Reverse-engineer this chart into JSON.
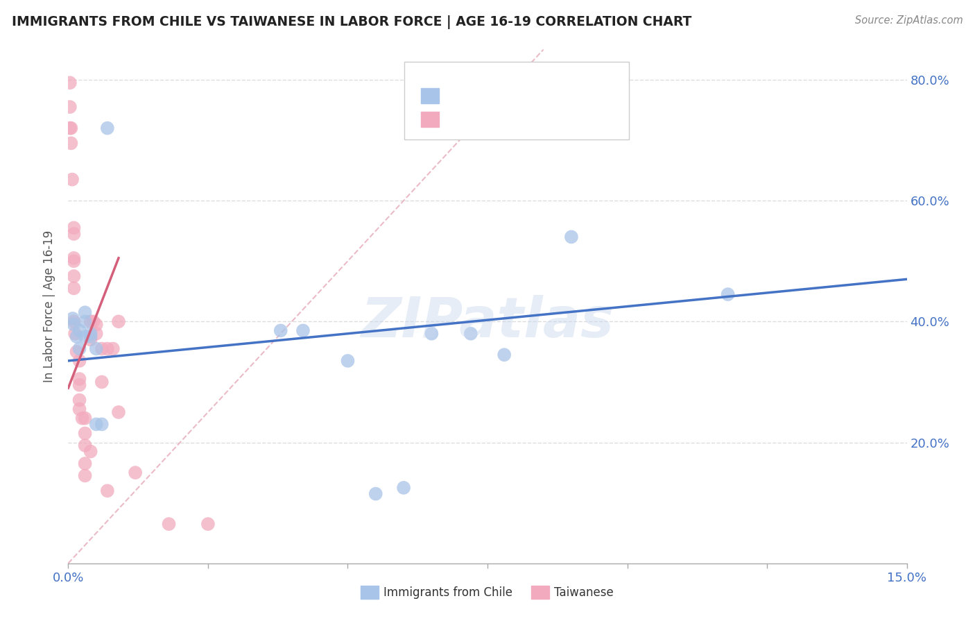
{
  "title": "IMMIGRANTS FROM CHILE VS TAIWANESE IN LABOR FORCE | AGE 16-19 CORRELATION CHART",
  "source": "Source: ZipAtlas.com",
  "ylabel": "In Labor Force | Age 16-19",
  "xlim": [
    0.0,
    0.15
  ],
  "ylim": [
    0.0,
    0.85
  ],
  "xticks": [
    0.0,
    0.025,
    0.05,
    0.075,
    0.1,
    0.125,
    0.15
  ],
  "yticks": [
    0.0,
    0.2,
    0.4,
    0.6,
    0.8
  ],
  "blue_color": "#a8c4e8",
  "pink_color": "#f2abbe",
  "line_blue": "#4472c4",
  "line_pink": "#d45f7a",
  "line_diag_color": "#e8b4c0",
  "watermark": "ZIPatlas",
  "blue_x": [
    0.0008,
    0.001,
    0.0015,
    0.002,
    0.002,
    0.003,
    0.003,
    0.003,
    0.004,
    0.004,
    0.005,
    0.005,
    0.006,
    0.007,
    0.038,
    0.042,
    0.05,
    0.055,
    0.06,
    0.065,
    0.072,
    0.078,
    0.09,
    0.118
  ],
  "blue_y": [
    0.405,
    0.395,
    0.375,
    0.385,
    0.355,
    0.415,
    0.4,
    0.375,
    0.375,
    0.38,
    0.355,
    0.23,
    0.23,
    0.72,
    0.385,
    0.385,
    0.335,
    0.115,
    0.125,
    0.38,
    0.38,
    0.345,
    0.54,
    0.445
  ],
  "pink_x": [
    0.0003,
    0.0003,
    0.0003,
    0.0005,
    0.0005,
    0.0007,
    0.001,
    0.001,
    0.001,
    0.001,
    0.001,
    0.001,
    0.001,
    0.0012,
    0.0015,
    0.002,
    0.002,
    0.002,
    0.002,
    0.002,
    0.0025,
    0.003,
    0.003,
    0.003,
    0.003,
    0.003,
    0.004,
    0.004,
    0.004,
    0.0045,
    0.005,
    0.005,
    0.006,
    0.006,
    0.007,
    0.007,
    0.008,
    0.009,
    0.009,
    0.012,
    0.018,
    0.025
  ],
  "pink_y": [
    0.795,
    0.755,
    0.72,
    0.695,
    0.72,
    0.635,
    0.555,
    0.545,
    0.505,
    0.5,
    0.475,
    0.455,
    0.4,
    0.38,
    0.35,
    0.335,
    0.305,
    0.295,
    0.27,
    0.255,
    0.24,
    0.24,
    0.215,
    0.195,
    0.165,
    0.145,
    0.4,
    0.37,
    0.185,
    0.4,
    0.395,
    0.38,
    0.355,
    0.3,
    0.355,
    0.12,
    0.355,
    0.4,
    0.25,
    0.15,
    0.065,
    0.065
  ],
  "blue_line_x": [
    0.0,
    0.15
  ],
  "blue_line_y": [
    0.335,
    0.47
  ],
  "pink_line_x": [
    0.0,
    0.009
  ],
  "pink_line_y": [
    0.29,
    0.505
  ],
  "diag_line_x": [
    0.0,
    0.085
  ],
  "diag_line_y": [
    0.0,
    0.85
  ]
}
